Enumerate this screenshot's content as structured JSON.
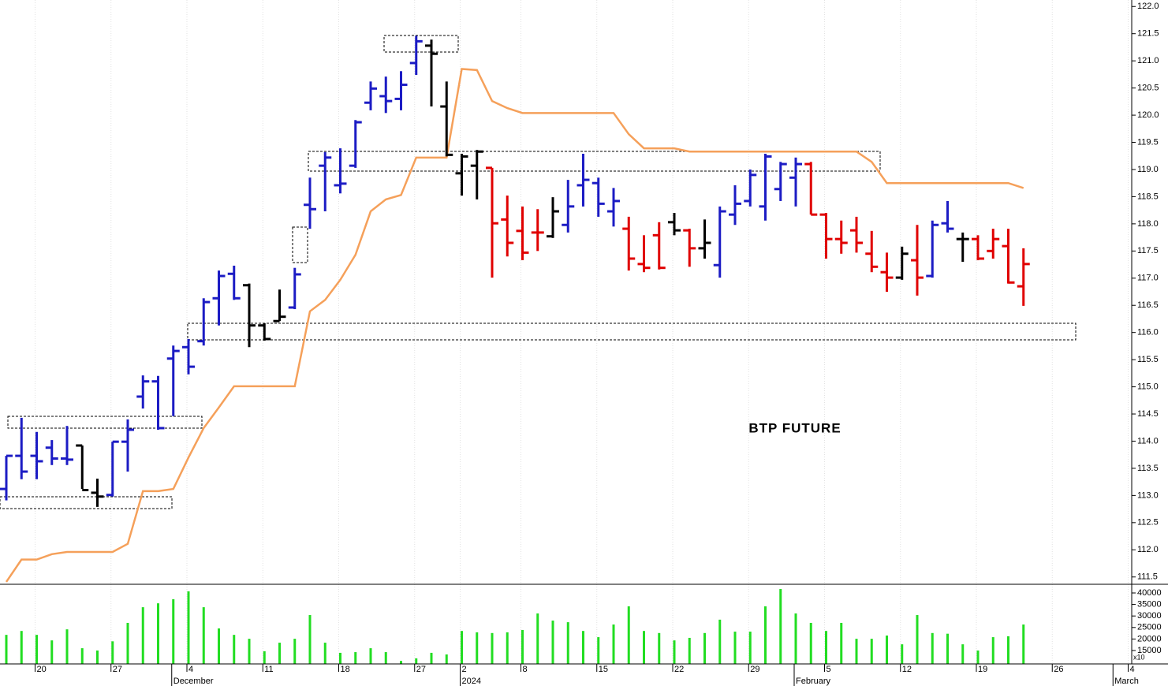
{
  "chart_data": {
    "type": "ohlc",
    "annotation": "BTP FUTURE",
    "categories": [
      null,
      null,
      "20",
      null,
      null,
      null,
      null,
      "27",
      null,
      null,
      null,
      null,
      "4",
      null,
      null,
      null,
      null,
      "11",
      null,
      null,
      null,
      null,
      "18",
      null,
      null,
      null,
      null,
      "27",
      null,
      null,
      "2",
      null,
      null,
      null,
      "8",
      null,
      null,
      null,
      null,
      "15",
      null,
      null,
      null,
      null,
      "22",
      null,
      null,
      null,
      null,
      "29",
      null,
      null,
      null,
      null,
      "5",
      null,
      null,
      null,
      null,
      "12",
      null,
      null,
      null,
      null,
      "19",
      null,
      null,
      null,
      null,
      "26",
      null,
      null,
      null,
      null,
      "4"
    ],
    "months": [
      null,
      null,
      null,
      null,
      null,
      null,
      null,
      null,
      null,
      null,
      null,
      "December",
      null,
      null,
      null,
      null,
      null,
      null,
      null,
      null,
      null,
      null,
      null,
      null,
      null,
      null,
      null,
      null,
      null,
      null,
      "2024",
      null,
      null,
      null,
      null,
      null,
      null,
      null,
      null,
      null,
      null,
      null,
      null,
      null,
      null,
      null,
      null,
      null,
      null,
      null,
      null,
      null,
      "February",
      null,
      null,
      null,
      null,
      null,
      null,
      null,
      null,
      null,
      null,
      null,
      null,
      null,
      null,
      null,
      null,
      null,
      null,
      null,
      null,
      "March",
      null
    ],
    "open": [
      113.12,
      113.73,
      113.73,
      113.88,
      113.68,
      113.92,
      113.05,
      113.01,
      113.99,
      114.82,
      115.1,
      115.52,
      115.73,
      115.84,
      116.63,
      117.08,
      116.87,
      116.13,
      116.21,
      116.46,
      118.35,
      119.07,
      118.71,
      119.07,
      120.23,
      120.35,
      120.3,
      120.96,
      121.28,
      120.16,
      118.93,
      119.07,
      119.03,
      118.08,
      117.87,
      117.84,
      117.77,
      117.98,
      118.71,
      118.75,
      118.23,
      117.91,
      117.26,
      117.79,
      118.03,
      117.88,
      117.55,
      117.24,
      118.17,
      118.42,
      118.32,
      118.64,
      118.85,
      119.1,
      118.17,
      117.72,
      117.88,
      117.45,
      117.11,
      117.01,
      117.33,
      117.04,
      118.01,
      117.72,
      117.72,
      117.5,
      117.59,
      116.85,
      null,
      null,
      null,
      null,
      null,
      null,
      null
    ],
    "high": [
      113.73,
      114.43,
      114.17,
      114.02,
      114.28,
      113.92,
      113.31,
      113.99,
      114.4,
      115.21,
      115.2,
      115.76,
      115.88,
      116.63,
      117.14,
      117.23,
      116.9,
      116.17,
      116.79,
      117.19,
      118.85,
      119.32,
      119.39,
      119.91,
      120.62,
      120.71,
      120.81,
      121.46,
      121.39,
      120.62,
      119.29,
      119.36,
      119.03,
      118.52,
      118.32,
      118.27,
      118.49,
      118.81,
      119.29,
      118.85,
      118.66,
      118.13,
      117.79,
      118.03,
      118.2,
      117.91,
      118.08,
      118.32,
      118.71,
      119.0,
      119.29,
      119.14,
      119.22,
      119.14,
      118.2,
      118.06,
      118.13,
      117.87,
      117.47,
      117.58,
      117.98,
      118.06,
      118.42,
      117.84,
      117.79,
      117.91,
      117.91,
      117.55,
      null,
      null,
      null,
      null,
      null,
      null,
      null
    ],
    "low": [
      112.91,
      113.3,
      113.3,
      113.56,
      113.56,
      113.12,
      112.79,
      112.98,
      113.44,
      114.6,
      114.21,
      114.46,
      115.23,
      115.76,
      116.13,
      116.6,
      115.73,
      115.85,
      116.21,
      116.43,
      117.91,
      118.23,
      118.56,
      119.03,
      120.09,
      120.04,
      120.09,
      120.74,
      120.16,
      119.24,
      118.52,
      118.45,
      117.01,
      117.4,
      117.33,
      117.5,
      117.74,
      117.84,
      118.32,
      118.13,
      117.95,
      117.14,
      117.11,
      117.16,
      117.79,
      117.21,
      117.36,
      117.01,
      117.98,
      118.32,
      118.06,
      118.42,
      118.32,
      118.17,
      117.36,
      117.45,
      117.47,
      117.11,
      116.75,
      116.97,
      116.68,
      117.01,
      117.84,
      117.3,
      117.33,
      117.36,
      116.9,
      116.49,
      null,
      null,
      null,
      null,
      null,
      null,
      null
    ],
    "close": [
      113.73,
      113.44,
      113.63,
      113.68,
      113.66,
      113.1,
      112.98,
      113.99,
      114.21,
      115.1,
      114.24,
      115.66,
      115.37,
      116.56,
      117.04,
      116.63,
      116.13,
      115.88,
      116.29,
      117.07,
      118.27,
      119.22,
      118.74,
      119.87,
      120.49,
      120.26,
      120.56,
      121.36,
      121.13,
      119.27,
      119.24,
      119.33,
      118.01,
      117.65,
      117.47,
      117.84,
      118.23,
      118.32,
      118.81,
      118.37,
      118.42,
      117.36,
      117.19,
      117.19,
      117.88,
      117.55,
      117.65,
      118.23,
      118.37,
      118.9,
      119.24,
      119.1,
      119.1,
      118.17,
      117.72,
      117.65,
      117.65,
      117.21,
      117.01,
      117.45,
      117.01,
      117.98,
      117.91,
      117.72,
      117.36,
      117.72,
      116.92,
      117.26,
      null,
      null,
      null,
      null,
      null,
      null,
      null
    ],
    "bar_colors": [
      "#1c1cc4",
      "#1c1cc4",
      "#1c1cc4",
      "#1c1cc4",
      "#1c1cc4",
      "#000000",
      "#000000",
      "#1c1cc4",
      "#1c1cc4",
      "#1c1cc4",
      "#1c1cc4",
      "#1c1cc4",
      "#1c1cc4",
      "#1c1cc4",
      "#1c1cc4",
      "#1c1cc4",
      "#000000",
      "#000000",
      "#000000",
      "#1c1cc4",
      "#1c1cc4",
      "#1c1cc4",
      "#1c1cc4",
      "#1c1cc4",
      "#1c1cc4",
      "#1c1cc4",
      "#1c1cc4",
      "#1c1cc4",
      "#000000",
      "#000000",
      "#000000",
      "#000000",
      "#e00000",
      "#e00000",
      "#e00000",
      "#e00000",
      "#000000",
      "#1c1cc4",
      "#1c1cc4",
      "#1c1cc4",
      "#1c1cc4",
      "#e00000",
      "#e00000",
      "#e00000",
      "#000000",
      "#e00000",
      "#000000",
      "#1c1cc4",
      "#1c1cc4",
      "#1c1cc4",
      "#1c1cc4",
      "#1c1cc4",
      "#1c1cc4",
      "#e00000",
      "#e00000",
      "#e00000",
      "#e00000",
      "#e00000",
      "#e00000",
      "#000000",
      "#e00000",
      "#1c1cc4",
      "#1c1cc4",
      "#000000",
      "#e00000",
      "#e00000",
      "#e00000",
      "#e00000"
    ],
    "line": {
      "color": "#f5a05a",
      "values": [
        111.41,
        111.82,
        111.82,
        111.92,
        111.96,
        111.96,
        111.96,
        111.96,
        112.11,
        113.08,
        113.08,
        113.12,
        113.7,
        114.24,
        114.62,
        115.01,
        115.01,
        115.01,
        115.01,
        115.01,
        116.39,
        116.6,
        116.97,
        117.43,
        118.23,
        118.45,
        118.53,
        119.22,
        119.22,
        119.22,
        120.85,
        120.83,
        120.26,
        120.13,
        120.04,
        120.04,
        120.04,
        120.04,
        120.04,
        120.04,
        120.04,
        119.65,
        119.39,
        119.39,
        119.39,
        119.33,
        119.33,
        119.33,
        119.33,
        119.33,
        119.33,
        119.33,
        119.33,
        119.33,
        119.33,
        119.33,
        119.33,
        119.14,
        118.75,
        118.75,
        118.75,
        118.75,
        118.75,
        118.75,
        118.75,
        118.75,
        118.75,
        118.66,
        null,
        null,
        null,
        null,
        null,
        null,
        null
      ]
    },
    "ylim": [
      111.38,
      122.12
    ],
    "yticks": [
      111.5,
      {
        "value": 112,
        "label": "112.0"
      },
      112.5,
      {
        "value": 113,
        "label": "113.0"
      },
      113.5,
      {
        "value": 114,
        "label": "114.0"
      },
      114.5,
      {
        "value": 115,
        "label": "115.0"
      },
      115.5,
      {
        "value": 116,
        "label": "116.0"
      },
      116.5,
      {
        "value": 117,
        "label": "117.0"
      },
      117.5,
      {
        "value": 118,
        "label": "118.0"
      },
      118.5,
      {
        "value": 119,
        "label": "119.0"
      },
      119.5,
      {
        "value": 120,
        "label": "120.0"
      },
      120.5,
      {
        "value": 121,
        "label": "121.0"
      },
      121.5,
      {
        "value": 122,
        "label": "122.0"
      }
    ],
    "grid": true,
    "volume": {
      "color": "#22dd22",
      "axis_note": "x10",
      "values": [
        21800,
        23500,
        21800,
        19400,
        24200,
        16000,
        15000,
        19000,
        27000,
        33800,
        35500,
        37300,
        40700,
        33800,
        24600,
        21800,
        20100,
        14700,
        18400,
        20100,
        30400,
        18400,
        14000,
        14300,
        16000,
        14300,
        10500,
        11600,
        14000,
        13300,
        23500,
        22900,
        22600,
        22900,
        23900,
        31100,
        28000,
        27300,
        23500,
        20800,
        26300,
        34200,
        23500,
        22600,
        19400,
        20500,
        22600,
        28400,
        23200,
        23200,
        34200,
        41700,
        31100,
        27000,
        23500,
        27000,
        20100,
        20100,
        21500,
        17700,
        30400,
        22600,
        22300,
        17700,
        15000,
        20800,
        21200,
        26300,
        null,
        null,
        null,
        null,
        null,
        null,
        null
      ],
      "ylim": [
        9180,
        43420
      ],
      "yticks": [
        15000,
        20000,
        25000,
        30000,
        35000,
        40000
      ]
    }
  }
}
